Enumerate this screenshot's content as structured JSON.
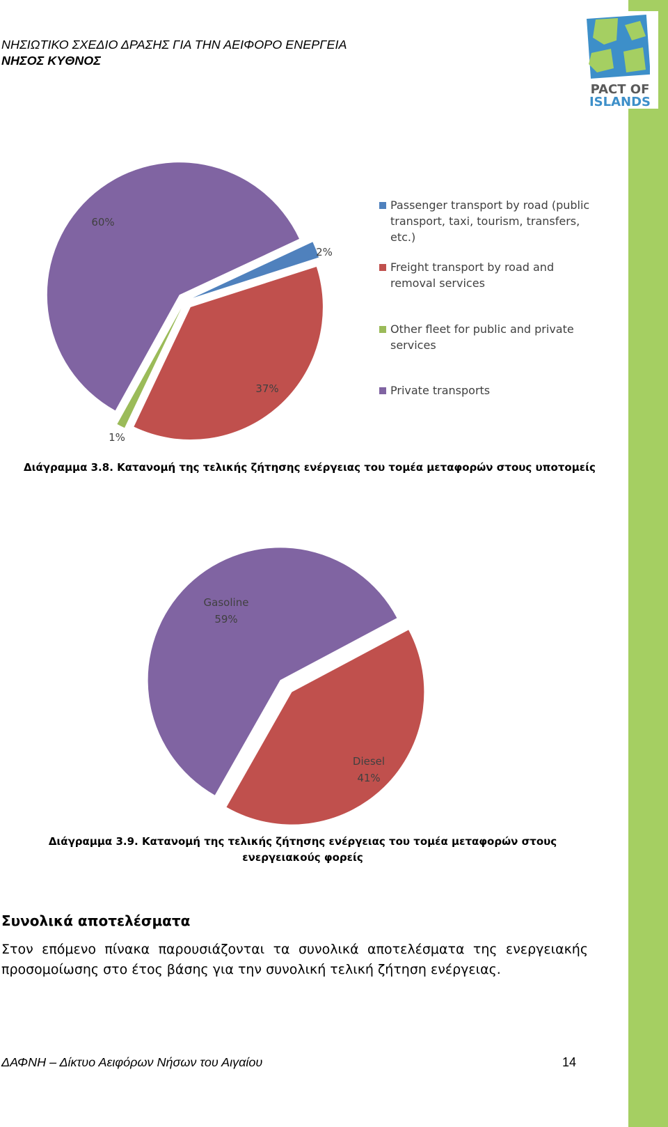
{
  "header": {
    "line1": "ΝΗΣΙΩΤΙΚΟ ΣΧΕΔΙΟ ΔΡΑΣΗΣ ΓΙΑ ΤΗΝ ΑΕΙΦΟΡΟ ΕΝΕΡΓΕΙΑ",
    "line2": "ΝΗΣΟΣ ΚΥΘΝΟΣ"
  },
  "logo": {
    "line1": "PACT OF",
    "line2": "ISLANDS"
  },
  "colors": {
    "accent_bar": "#a5cf62",
    "blue": "#4f81bd",
    "red": "#c0504d",
    "green": "#9bbb59",
    "purple": "#8064a2"
  },
  "chart_data": [
    {
      "type": "pie",
      "labels": [
        "Passenger transport by road (public transport, taxi, tourism, transfers, etc.)",
        "Freight transport by road and removal services",
        "Other fleet for public and private services",
        "Private transports"
      ],
      "values": [
        2,
        37,
        1,
        60
      ],
      "data_labels": [
        "2%",
        "37%",
        "1%",
        "60%"
      ],
      "legend_position": "right"
    },
    {
      "type": "pie",
      "labels": [
        "Diesel",
        "Gasoline"
      ],
      "values": [
        41,
        59
      ],
      "data_labels": [
        "Diesel",
        "41%",
        "Gasoline",
        "59%"
      ]
    }
  ],
  "captions": {
    "fig1": "Διάγραμμα 3.8. Κατανομή της τελικής ζήτησης ενέργειας του τομέα μεταφορών στους υποτομείς",
    "fig2": "Διάγραμμα 3.9. Κατανομή της τελικής ζήτησης ενέργειας του τομέα μεταφορών στους ενεργειακούς φορείς"
  },
  "section": {
    "title": "Συνολικά αποτελέσματα",
    "body": "Στον επόμενο πίνακα παρουσιάζονται τα συνολικά αποτελέσματα της ενεργειακής προσομοίωσης στο έτος βάσης για την συνολική τελική ζήτηση ενέργειας."
  },
  "footer": {
    "text": "ΔΑΦΝΗ – Δίκτυο Αειφόρων Νήσων του Αιγαίου",
    "page": "14"
  }
}
